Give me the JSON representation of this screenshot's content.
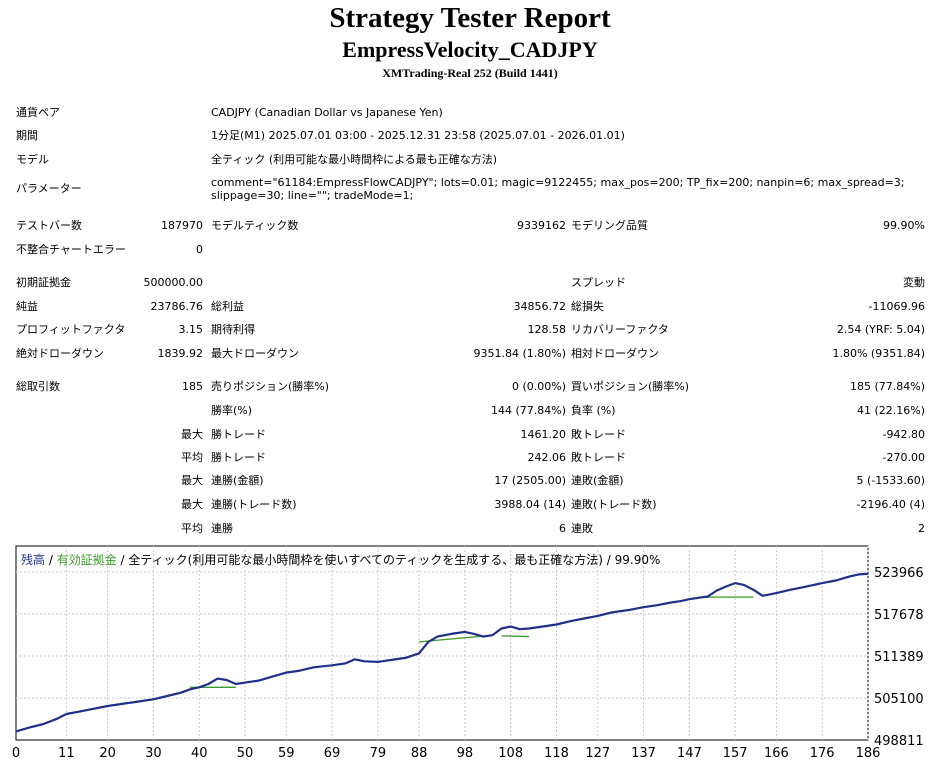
{
  "header": {
    "title": "Strategy Tester Report",
    "subtitle": "EmpressVelocity_CADJPY",
    "server": "XMTrading-Real 252 (Build 1441)"
  },
  "info": {
    "symbol_label": "通貨ペア",
    "symbol": "CADJPY (Canadian Dollar vs Japanese Yen)",
    "period_label": "期間",
    "period": "1分足(M1) 2025.07.01 03:00 - 2025.12.31 23:58 (2025.07.01 - 2026.01.01)",
    "model_label": "モデル",
    "model": "全ティック (利用可能な最小時間枠による最も正確な方法)",
    "params_label": "パラメーター",
    "params_line1": "comment=\"61184:EmpressFlowCADJPY\"; lots=0.01; magic=9122455; max_pos=200; TP_fix=200; nanpin=6; max_spread=3;",
    "params_line2": "slippage=30; line=\"\"; tradeMode=1;"
  },
  "stats": {
    "bars_label": "テストバー数",
    "bars": "187970",
    "ticks_label": "モデルティック数",
    "ticks": "9339162",
    "quality_label": "モデリング品質",
    "quality": "99.90%",
    "mismatch_label": "不整合チャートエラー",
    "mismatch": "0",
    "deposit_label": "初期証拠金",
    "deposit": "500000.00",
    "spread_label": "スプレッド",
    "spread": "変動",
    "net_label": "純益",
    "net": "23786.76",
    "gross_profit_label": "総利益",
    "gross_profit": "34856.72",
    "gross_loss_label": "総損失",
    "gross_loss": "-11069.96",
    "pf_label": "プロフィットファクタ",
    "pf": "3.15",
    "expected_label": "期待利得",
    "expected": "128.58",
    "recovery_label": "リカバリーファクタ",
    "recovery": "2.54 (YRF: 5.04)",
    "abs_dd_label": "絶対ドローダウン",
    "abs_dd": "1839.92",
    "max_dd_label": "最大ドローダウン",
    "max_dd": "9351.84 (1.80%)",
    "rel_dd_label": "相対ドローダウン",
    "rel_dd": "1.80% (9351.84)",
    "trades_label": "総取引数",
    "trades": "185",
    "short_label": "売りポジション(勝率%)",
    "short": "0 (0.00%)",
    "long_label": "買いポジション(勝率%)",
    "long": "185 (77.84%)",
    "win_rate_label": "勝率(%)",
    "win_rate": "144 (77.84%)",
    "loss_rate_label": "負率 (%)",
    "loss_rate": "41 (22.16%)",
    "max_label": "最大",
    "avg_label": "平均",
    "win_trade_label": "勝トレード",
    "loss_trade_label": "敗トレード",
    "max_win": "1461.20",
    "max_loss": "-942.80",
    "avg_win": "242.06",
    "avg_loss": "-270.00",
    "cons_win_amt_label": "連勝(金額)",
    "cons_win_amt": "17 (2505.00)",
    "cons_loss_amt_label": "連敗(金額)",
    "cons_loss_amt": "5 (-1533.60)",
    "cons_win_trd_label": "連勝(トレード数)",
    "cons_win_trd": "3988.04 (14)",
    "cons_loss_trd_label": "連敗(トレード数)",
    "cons_loss_trd": "-2196.40 (4)",
    "avg_cons_win_label": "連勝",
    "avg_cons_win": "6",
    "avg_cons_loss_label": "連敗",
    "avg_cons_loss": "2"
  },
  "legend": {
    "balance": "残高",
    "sep1": " / ",
    "equity": "有効証拠金",
    "rest": " / 全ティック(利用可能な最小時間枠を使いすべてのティックを生成する、最も正確な方法) / 99.90%"
  },
  "colors": {
    "balance": "#1f2f8c",
    "equity": "#3a9a2a",
    "grid": "#c8c8c8"
  },
  "chart_data": {
    "type": "line",
    "x_ticks": [
      0,
      11,
      20,
      30,
      40,
      50,
      59,
      69,
      79,
      88,
      98,
      108,
      118,
      127,
      137,
      147,
      157,
      166,
      176,
      186
    ],
    "y_ticks": [
      498811,
      505100,
      511389,
      517678,
      523966
    ],
    "xlim": [
      0,
      186
    ],
    "ylim": [
      498811,
      523966
    ],
    "series": [
      {
        "name": "残高",
        "x": [
          0,
          3,
          6,
          9,
          11,
          14,
          17,
          20,
          23,
          26,
          30,
          33,
          36,
          38,
          40,
          42,
          44,
          46,
          48,
          50,
          53,
          56,
          59,
          62,
          65,
          69,
          72,
          74,
          76,
          79,
          82,
          85,
          88,
          90,
          92,
          95,
          98,
          100,
          102,
          104,
          106,
          108,
          110,
          112,
          115,
          118,
          121,
          124,
          127,
          130,
          134,
          137,
          140,
          143,
          145,
          147,
          149,
          151,
          153,
          155,
          157,
          159,
          161,
          163,
          166,
          169,
          172,
          176,
          179,
          182,
          184,
          186
        ],
        "values": [
          500100,
          500700,
          501200,
          502000,
          502700,
          503100,
          503500,
          503900,
          504200,
          504500,
          504900,
          505400,
          505900,
          506400,
          506700,
          507200,
          508000,
          507800,
          507200,
          507400,
          507700,
          508300,
          508900,
          509200,
          509700,
          510000,
          510300,
          510900,
          510600,
          510500,
          510800,
          511100,
          511800,
          513500,
          514300,
          514700,
          515000,
          514700,
          514300,
          514500,
          515500,
          515800,
          515400,
          515500,
          515800,
          516100,
          516600,
          517000,
          517400,
          517900,
          518300,
          518700,
          519000,
          519400,
          519600,
          519900,
          520100,
          520300,
          521200,
          521800,
          522300,
          522000,
          521300,
          520400,
          520800,
          521300,
          521700,
          522300,
          522700,
          523300,
          523600,
          523700
        ]
      },
      {
        "name": "有効証拠金",
        "x": [
          38,
          48,
          88,
          104,
          106,
          112,
          149,
          161
        ],
        "values": [
          506700,
          506700,
          513500,
          514500,
          514400,
          514300,
          520200,
          520200
        ]
      }
    ]
  }
}
